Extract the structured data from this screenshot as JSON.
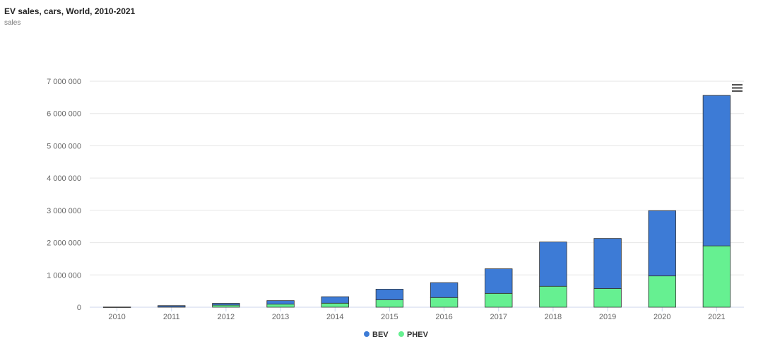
{
  "chart_data": {
    "type": "bar",
    "stacked": true,
    "title": "EV sales, cars, World, 2010-2021",
    "subtitle": "sales",
    "xlabel": "",
    "ylabel": "",
    "ylim": [
      0,
      7000000
    ],
    "yticks": [
      0,
      1000000,
      2000000,
      3000000,
      4000000,
      5000000,
      6000000,
      7000000
    ],
    "ytick_labels": [
      "0",
      "1 000 000",
      "2 000 000",
      "3 000 000",
      "4 000 000",
      "5 000 000",
      "6 000 000",
      "7 000 000"
    ],
    "categories": [
      "2010",
      "2011",
      "2012",
      "2013",
      "2014",
      "2015",
      "2016",
      "2017",
      "2018",
      "2019",
      "2020",
      "2021"
    ],
    "series": [
      {
        "name": "PHEV",
        "color": "#66f091",
        "values": [
          0,
          9000,
          65000,
          95000,
          125000,
          230000,
          300000,
          430000,
          650000,
          580000,
          970000,
          1900000
        ]
      },
      {
        "name": "BEV",
        "color": "#3d7bd6",
        "values": [
          7000,
          41000,
          55000,
          110000,
          200000,
          330000,
          460000,
          760000,
          1370000,
          1550000,
          2020000,
          4660000
        ]
      }
    ],
    "legend": {
      "position": "bottom-center",
      "order": [
        "BEV",
        "PHEV"
      ]
    },
    "grid": true
  },
  "menu_icon": "hamburger-menu-icon"
}
